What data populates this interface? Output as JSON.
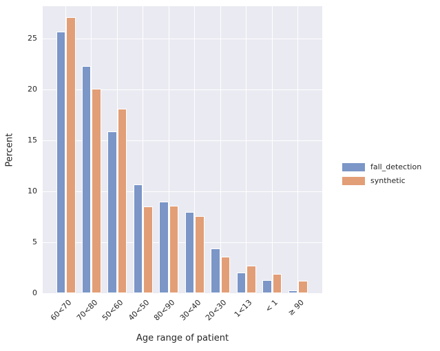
{
  "figure": {
    "background": "#ffffff",
    "plot_background": "#eaeaf2",
    "grid_color": "#ffffff",
    "text_color": "#262626"
  },
  "chart_data": {
    "type": "bar",
    "title": "",
    "xlabel": "Age range of patient",
    "ylabel": "Percent",
    "categories": [
      "60<70",
      "70<80",
      "50<60",
      "40<50",
      "80<90",
      "30<40",
      "20<30",
      "1<13",
      "< 1",
      "≥ 90"
    ],
    "series": [
      {
        "name": "fall_detection",
        "color": "#7b96c7",
        "values": [
          25.7,
          22.3,
          15.9,
          10.7,
          9.0,
          8.0,
          4.4,
          2.0,
          1.3,
          0.3
        ]
      },
      {
        "name": "synthetic",
        "color": "#e29e77",
        "values": [
          27.1,
          20.1,
          18.1,
          8.5,
          8.6,
          7.6,
          3.6,
          2.7,
          1.9,
          1.2
        ]
      }
    ],
    "ylim": [
      0,
      28.2
    ],
    "yticks": [
      0,
      5,
      10,
      15,
      20,
      25
    ],
    "grid": true,
    "grid_axes": "both",
    "legend_position": "center right",
    "x_tick_rotation": 45
  }
}
